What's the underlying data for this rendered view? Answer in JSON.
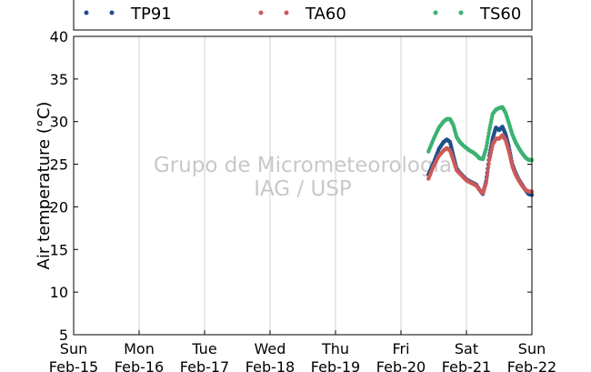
{
  "chart_data": {
    "type": "line",
    "ylabel": "Air temperature (°C)",
    "xlabel": "",
    "ylim": [
      5,
      40
    ],
    "yticks": [
      5,
      10,
      15,
      20,
      25,
      30,
      35,
      40
    ],
    "xlim": [
      0,
      7
    ],
    "grid": "vertical",
    "legend_position": "top",
    "x_ticks": [
      {
        "day": "Sun",
        "date": "Feb-15"
      },
      {
        "day": "Mon",
        "date": "Feb-16"
      },
      {
        "day": "Tue",
        "date": "Feb-17"
      },
      {
        "day": "Wed",
        "date": "Feb-18"
      },
      {
        "day": "Thu",
        "date": "Feb-19"
      },
      {
        "day": "Fri",
        "date": "Feb-20"
      },
      {
        "day": "Sat",
        "date": "Feb-21"
      },
      {
        "day": "Sun",
        "date": "Feb-22"
      }
    ],
    "watermark": [
      "Grupo de Micrometeorologia",
      "IAG / USP"
    ],
    "series": [
      {
        "name": "TP91",
        "color": "#1f4e8c",
        "points": [
          [
            5.42,
            23.8
          ],
          [
            5.5,
            25.2
          ],
          [
            5.58,
            26.8
          ],
          [
            5.65,
            27.6
          ],
          [
            5.7,
            27.9
          ],
          [
            5.75,
            27.6
          ],
          [
            5.8,
            26.0
          ],
          [
            5.85,
            24.5
          ],
          [
            5.9,
            24.0
          ],
          [
            5.95,
            23.6
          ],
          [
            6.0,
            23.2
          ],
          [
            6.05,
            23.0
          ],
          [
            6.1,
            22.8
          ],
          [
            6.15,
            22.6
          ],
          [
            6.2,
            22.0
          ],
          [
            6.25,
            21.5
          ],
          [
            6.3,
            23.0
          ],
          [
            6.35,
            26.0
          ],
          [
            6.4,
            28.0
          ],
          [
            6.45,
            29.3
          ],
          [
            6.5,
            29.0
          ],
          [
            6.55,
            29.4
          ],
          [
            6.6,
            28.5
          ],
          [
            6.65,
            27.0
          ],
          [
            6.7,
            25.0
          ],
          [
            6.75,
            24.0
          ],
          [
            6.8,
            23.2
          ],
          [
            6.85,
            22.6
          ],
          [
            6.9,
            22.0
          ],
          [
            6.95,
            21.5
          ],
          [
            7.0,
            21.4
          ]
        ]
      },
      {
        "name": "TA60",
        "color": "#cc5a5a",
        "points": [
          [
            5.42,
            23.3
          ],
          [
            5.5,
            24.8
          ],
          [
            5.58,
            26.0
          ],
          [
            5.65,
            26.6
          ],
          [
            5.7,
            26.9
          ],
          [
            5.75,
            26.6
          ],
          [
            5.8,
            25.5
          ],
          [
            5.85,
            24.3
          ],
          [
            5.9,
            23.9
          ],
          [
            5.95,
            23.5
          ],
          [
            6.0,
            23.1
          ],
          [
            6.05,
            22.9
          ],
          [
            6.1,
            22.7
          ],
          [
            6.15,
            22.5
          ],
          [
            6.2,
            22.0
          ],
          [
            6.25,
            21.6
          ],
          [
            6.3,
            22.8
          ],
          [
            6.35,
            25.5
          ],
          [
            6.4,
            27.3
          ],
          [
            6.45,
            28.0
          ],
          [
            6.5,
            28.0
          ],
          [
            6.55,
            28.4
          ],
          [
            6.6,
            27.8
          ],
          [
            6.65,
            26.5
          ],
          [
            6.7,
            24.8
          ],
          [
            6.75,
            23.8
          ],
          [
            6.8,
            23.1
          ],
          [
            6.85,
            22.5
          ],
          [
            6.9,
            22.0
          ],
          [
            6.95,
            21.8
          ],
          [
            7.0,
            21.8
          ]
        ]
      },
      {
        "name": "TS60",
        "color": "#3bb273",
        "points": [
          [
            5.42,
            26.5
          ],
          [
            5.5,
            28.0
          ],
          [
            5.58,
            29.3
          ],
          [
            5.65,
            30.0
          ],
          [
            5.7,
            30.3
          ],
          [
            5.75,
            30.3
          ],
          [
            5.8,
            29.6
          ],
          [
            5.85,
            28.2
          ],
          [
            5.9,
            27.6
          ],
          [
            5.95,
            27.2
          ],
          [
            6.0,
            26.9
          ],
          [
            6.05,
            26.6
          ],
          [
            6.1,
            26.4
          ],
          [
            6.15,
            26.1
          ],
          [
            6.2,
            25.7
          ],
          [
            6.25,
            25.6
          ],
          [
            6.3,
            26.8
          ],
          [
            6.35,
            29.0
          ],
          [
            6.4,
            30.9
          ],
          [
            6.45,
            31.4
          ],
          [
            6.5,
            31.6
          ],
          [
            6.55,
            31.7
          ],
          [
            6.6,
            31.0
          ],
          [
            6.65,
            29.8
          ],
          [
            6.7,
            28.5
          ],
          [
            6.75,
            27.6
          ],
          [
            6.8,
            26.9
          ],
          [
            6.85,
            26.3
          ],
          [
            6.9,
            25.8
          ],
          [
            6.95,
            25.5
          ],
          [
            7.0,
            25.5
          ]
        ]
      }
    ]
  }
}
